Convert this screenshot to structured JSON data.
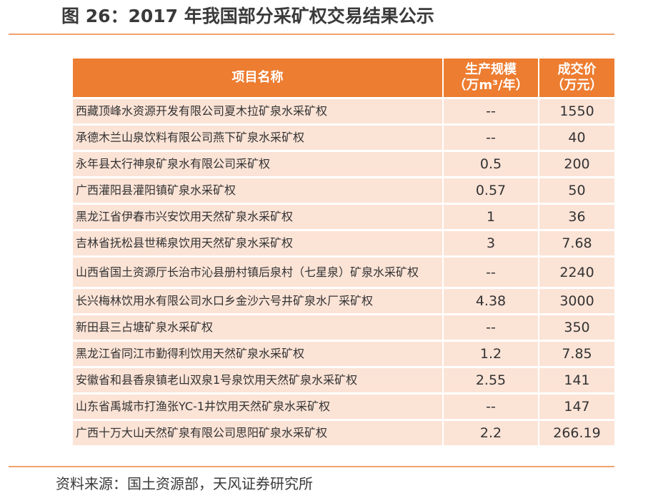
{
  "figure": {
    "title": "图 26：2017 年我国部分采矿权交易结果公示"
  },
  "table": {
    "headers": {
      "name": "项目名称",
      "scale_line1": "生产规模",
      "scale_line2": "（万m³/年）",
      "price_line1": "成交价",
      "price_line2": "（万元）"
    },
    "rows": [
      {
        "name": "西藏顶峰水资源开发有限公司夏木拉矿泉水采矿权",
        "scale": "--",
        "price": "1550"
      },
      {
        "name": "承德木兰山泉饮料有限公司燕下矿泉水采矿权",
        "scale": "--",
        "price": "40"
      },
      {
        "name": "永年县太行神泉矿泉水有限公司采矿权",
        "scale": "0.5",
        "price": "200"
      },
      {
        "name": "广西灌阳县灌阳镇矿泉水采矿权",
        "scale": "0.57",
        "price": "50"
      },
      {
        "name": "黑龙江省伊春市兴安饮用天然矿泉水采矿权",
        "scale": "1",
        "price": "36"
      },
      {
        "name": "吉林省抚松县世稀泉饮用天然矿泉水采矿权",
        "scale": "3",
        "price": "7.68"
      },
      {
        "name": "山西省国土资源厅长治市沁县册村镇后泉村（七星泉）矿泉水采矿权",
        "scale": "--",
        "price": "2240"
      },
      {
        "name": "长兴梅林饮用水有限公司水口乡金沙六号井矿泉水厂采矿权",
        "scale": "4.38",
        "price": "3000"
      },
      {
        "name": "新田县三占塘矿泉水采矿权",
        "scale": "--",
        "price": "350"
      },
      {
        "name": "黑龙江省同江市勤得利饮用天然矿泉水采矿权",
        "scale": "1.2",
        "price": "7.85"
      },
      {
        "name": "安徽省和县香泉镇老山双泉1号泉饮用天然矿泉水采矿权",
        "scale": "2.55",
        "price": "141"
      },
      {
        "name": "山东省禹城市打渔张YC-1井饮用天然矿泉水采矿权",
        "scale": "--",
        "price": "147"
      },
      {
        "name": "广西十万大山天然矿泉有限公司思阳矿泉水采矿权",
        "scale": "2.2",
        "price": "266.19"
      }
    ]
  },
  "source": {
    "text": "资料来源：国土资源部，天风证券研究所"
  },
  "colors": {
    "header_bg": "#ed7d31",
    "row_bg": "#fbe3d6",
    "rule": "#f0a26b"
  }
}
